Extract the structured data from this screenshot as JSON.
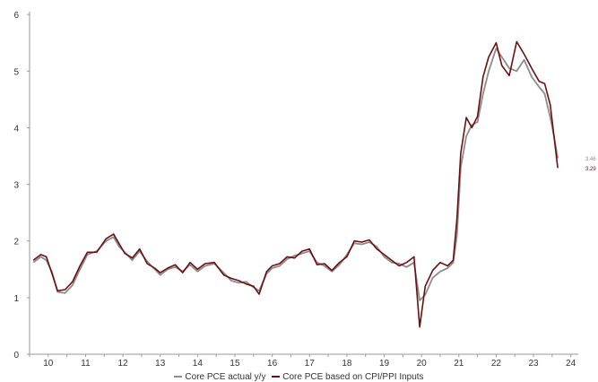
{
  "colors": {
    "actual": "#8c8c8c",
    "based": "#6e0f0f",
    "axis": "#9a9a9a"
  },
  "chart_data": {
    "type": "line",
    "xlim": [
      2009.5,
      2024.2
    ],
    "ylim": [
      0,
      6.05
    ],
    "x_ticks": [
      {
        "value": 2010,
        "label": "10"
      },
      {
        "value": 2011,
        "label": "11"
      },
      {
        "value": 2012,
        "label": "12"
      },
      {
        "value": 2013,
        "label": "13"
      },
      {
        "value": 2014,
        "label": "14"
      },
      {
        "value": 2015,
        "label": "15"
      },
      {
        "value": 2016,
        "label": "16"
      },
      {
        "value": 2017,
        "label": "17"
      },
      {
        "value": 2018,
        "label": "18"
      },
      {
        "value": 2019,
        "label": "19"
      },
      {
        "value": 2020,
        "label": "20"
      },
      {
        "value": 2021,
        "label": "21"
      },
      {
        "value": 2022,
        "label": "22"
      },
      {
        "value": 2023,
        "label": "23"
      },
      {
        "value": 2024,
        "label": "24"
      }
    ],
    "y_ticks": [
      {
        "value": 0,
        "label": "0"
      },
      {
        "value": 1,
        "label": "1"
      },
      {
        "value": 2,
        "label": "2"
      },
      {
        "value": 3,
        "label": "3"
      },
      {
        "value": 4,
        "label": "4"
      },
      {
        "value": 5,
        "label": "5"
      },
      {
        "value": 6,
        "label": "6"
      }
    ],
    "series": [
      {
        "name": "Core PCE actual y/y",
        "color": "#8c8c8c",
        "end_label": "3.46",
        "points": [
          [
            2009.6,
            1.62
          ],
          [
            2009.8,
            1.72
          ],
          [
            2009.95,
            1.66
          ],
          [
            2010.1,
            1.45
          ],
          [
            2010.25,
            1.1
          ],
          [
            2010.45,
            1.08
          ],
          [
            2010.65,
            1.22
          ],
          [
            2010.85,
            1.5
          ],
          [
            2011.05,
            1.76
          ],
          [
            2011.3,
            1.82
          ],
          [
            2011.55,
            2.0
          ],
          [
            2011.75,
            2.07
          ],
          [
            2011.9,
            1.9
          ],
          [
            2012.05,
            1.8
          ],
          [
            2012.25,
            1.66
          ],
          [
            2012.45,
            1.82
          ],
          [
            2012.65,
            1.64
          ],
          [
            2012.85,
            1.5
          ],
          [
            2013.0,
            1.4
          ],
          [
            2013.2,
            1.5
          ],
          [
            2013.4,
            1.54
          ],
          [
            2013.6,
            1.46
          ],
          [
            2013.8,
            1.58
          ],
          [
            2014.0,
            1.46
          ],
          [
            2014.2,
            1.56
          ],
          [
            2014.45,
            1.6
          ],
          [
            2014.7,
            1.44
          ],
          [
            2014.9,
            1.3
          ],
          [
            2015.1,
            1.26
          ],
          [
            2015.3,
            1.28
          ],
          [
            2015.5,
            1.18
          ],
          [
            2015.65,
            1.12
          ],
          [
            2015.85,
            1.42
          ],
          [
            2016.0,
            1.52
          ],
          [
            2016.2,
            1.56
          ],
          [
            2016.4,
            1.68
          ],
          [
            2016.6,
            1.74
          ],
          [
            2016.8,
            1.78
          ],
          [
            2017.0,
            1.82
          ],
          [
            2017.2,
            1.62
          ],
          [
            2017.4,
            1.56
          ],
          [
            2017.6,
            1.46
          ],
          [
            2017.8,
            1.58
          ],
          [
            2018.0,
            1.76
          ],
          [
            2018.2,
            1.96
          ],
          [
            2018.4,
            1.94
          ],
          [
            2018.6,
            1.98
          ],
          [
            2018.8,
            1.9
          ],
          [
            2019.0,
            1.72
          ],
          [
            2019.2,
            1.62
          ],
          [
            2019.4,
            1.6
          ],
          [
            2019.6,
            1.54
          ],
          [
            2019.8,
            1.62
          ],
          [
            2019.95,
            0.95
          ],
          [
            2020.1,
            1.05
          ],
          [
            2020.3,
            1.35
          ],
          [
            2020.5,
            1.46
          ],
          [
            2020.7,
            1.52
          ],
          [
            2020.85,
            1.62
          ],
          [
            2020.95,
            2.1
          ],
          [
            2021.05,
            3.3
          ],
          [
            2021.2,
            3.85
          ],
          [
            2021.35,
            4.05
          ],
          [
            2021.5,
            4.1
          ],
          [
            2021.65,
            4.6
          ],
          [
            2021.8,
            5.0
          ],
          [
            2022.0,
            5.4
          ],
          [
            2022.15,
            5.25
          ],
          [
            2022.35,
            5.05
          ],
          [
            2022.55,
            5.0
          ],
          [
            2022.75,
            5.2
          ],
          [
            2022.95,
            4.9
          ],
          [
            2023.15,
            4.72
          ],
          [
            2023.3,
            4.6
          ],
          [
            2023.45,
            4.18
          ],
          [
            2023.55,
            3.85
          ],
          [
            2023.65,
            3.46
          ]
        ]
      },
      {
        "name": "Core PCE based on CPI/PPI inputs",
        "color": "#6e0f0f",
        "end_label": "3.29",
        "points": [
          [
            2009.6,
            1.66
          ],
          [
            2009.8,
            1.76
          ],
          [
            2009.95,
            1.72
          ],
          [
            2010.1,
            1.42
          ],
          [
            2010.25,
            1.12
          ],
          [
            2010.45,
            1.14
          ],
          [
            2010.65,
            1.28
          ],
          [
            2010.85,
            1.56
          ],
          [
            2011.05,
            1.8
          ],
          [
            2011.3,
            1.8
          ],
          [
            2011.55,
            2.04
          ],
          [
            2011.75,
            2.12
          ],
          [
            2011.9,
            1.95
          ],
          [
            2012.05,
            1.78
          ],
          [
            2012.25,
            1.7
          ],
          [
            2012.45,
            1.86
          ],
          [
            2012.65,
            1.6
          ],
          [
            2012.85,
            1.52
          ],
          [
            2013.0,
            1.44
          ],
          [
            2013.2,
            1.52
          ],
          [
            2013.4,
            1.58
          ],
          [
            2013.6,
            1.44
          ],
          [
            2013.8,
            1.62
          ],
          [
            2014.0,
            1.5
          ],
          [
            2014.2,
            1.6
          ],
          [
            2014.45,
            1.62
          ],
          [
            2014.7,
            1.4
          ],
          [
            2014.9,
            1.34
          ],
          [
            2015.1,
            1.3
          ],
          [
            2015.3,
            1.24
          ],
          [
            2015.5,
            1.2
          ],
          [
            2015.65,
            1.06
          ],
          [
            2015.85,
            1.46
          ],
          [
            2016.0,
            1.56
          ],
          [
            2016.2,
            1.6
          ],
          [
            2016.4,
            1.72
          ],
          [
            2016.6,
            1.7
          ],
          [
            2016.8,
            1.82
          ],
          [
            2017.0,
            1.86
          ],
          [
            2017.2,
            1.58
          ],
          [
            2017.4,
            1.6
          ],
          [
            2017.6,
            1.48
          ],
          [
            2017.8,
            1.62
          ],
          [
            2018.0,
            1.72
          ],
          [
            2018.2,
            2.0
          ],
          [
            2018.4,
            1.98
          ],
          [
            2018.6,
            2.02
          ],
          [
            2018.8,
            1.86
          ],
          [
            2019.0,
            1.76
          ],
          [
            2019.2,
            1.66
          ],
          [
            2019.4,
            1.56
          ],
          [
            2019.6,
            1.62
          ],
          [
            2019.8,
            1.72
          ],
          [
            2019.95,
            0.48
          ],
          [
            2020.1,
            1.2
          ],
          [
            2020.3,
            1.48
          ],
          [
            2020.5,
            1.62
          ],
          [
            2020.7,
            1.56
          ],
          [
            2020.85,
            1.66
          ],
          [
            2020.95,
            2.4
          ],
          [
            2021.05,
            3.55
          ],
          [
            2021.2,
            4.18
          ],
          [
            2021.35,
            4.0
          ],
          [
            2021.5,
            4.2
          ],
          [
            2021.65,
            4.9
          ],
          [
            2021.8,
            5.25
          ],
          [
            2022.0,
            5.5
          ],
          [
            2022.15,
            5.1
          ],
          [
            2022.35,
            4.92
          ],
          [
            2022.55,
            5.52
          ],
          [
            2022.75,
            5.3
          ],
          [
            2022.95,
            5.05
          ],
          [
            2023.15,
            4.82
          ],
          [
            2023.3,
            4.78
          ],
          [
            2023.45,
            4.4
          ],
          [
            2023.55,
            3.85
          ],
          [
            2023.65,
            3.29
          ]
        ]
      }
    ],
    "legend": {
      "position": "bottom",
      "entries": [
        "Core PCE actual y/y",
        "Core PCE based on CPI/PPI Inputs"
      ]
    },
    "grid": false
  }
}
